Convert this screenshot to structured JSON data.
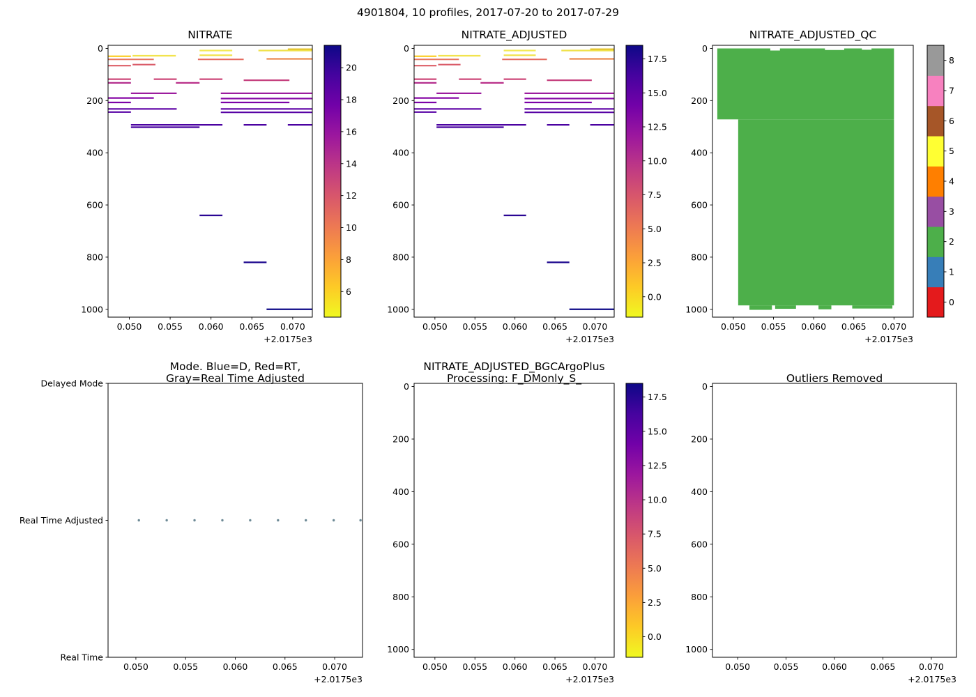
{
  "figure": {
    "title": "4901804, 10 profiles, 2017-07-20 to 2017-07-29",
    "background": "#ffffff",
    "plasma_stops_low_to_high": [
      "#f0f921",
      "#fdca26",
      "#fb9f3a",
      "#ed7953",
      "#d8576b",
      "#bd3786",
      "#9c179e",
      "#7201a8",
      "#46039f",
      "#0d0887"
    ]
  },
  "chart_data": [
    {
      "id": "nitrate",
      "type": "line",
      "title": "NITRATE",
      "x_range": [
        0.0474,
        0.0724
      ],
      "x_ticks": [
        0.05,
        0.055,
        0.06,
        0.065,
        0.07
      ],
      "x_tick_labels": [
        "0.050",
        "0.055",
        "0.060",
        "0.065",
        "0.070"
      ],
      "offset_label": "+2.0175e3",
      "y_range": [
        -12,
        1030
      ],
      "y_ticks": [
        0,
        200,
        400,
        600,
        800,
        1000
      ],
      "y_tick_labels": [
        "0",
        "200",
        "400",
        "600",
        "800",
        "1000"
      ],
      "segments": [
        {
          "x1": 0.0474,
          "x2": 0.0502,
          "d": 30,
          "c": "#fcce25"
        },
        {
          "x1": 0.0504,
          "x2": 0.0557,
          "d": 28,
          "c": "#f2e34e"
        },
        {
          "x1": 0.0586,
          "x2": 0.0626,
          "d": 26,
          "c": "#f2e34e"
        },
        {
          "x1": 0.0586,
          "x2": 0.0626,
          "d": 8,
          "c": "#f4ea54"
        },
        {
          "x1": 0.0658,
          "x2": 0.0724,
          "d": 8,
          "c": "#f0e14a"
        },
        {
          "x1": 0.0694,
          "x2": 0.0724,
          "d": 3,
          "c": "#e3c32e"
        },
        {
          "x1": 0.0474,
          "x2": 0.053,
          "d": 42,
          "c": "#e8775f"
        },
        {
          "x1": 0.0584,
          "x2": 0.064,
          "d": 42,
          "c": "#e4695e"
        },
        {
          "x1": 0.0668,
          "x2": 0.0724,
          "d": 40,
          "c": "#ec8a51"
        },
        {
          "x1": 0.0474,
          "x2": 0.0502,
          "d": 66,
          "c": "#dd5e66"
        },
        {
          "x1": 0.0504,
          "x2": 0.0532,
          "d": 62,
          "c": "#da5a68"
        },
        {
          "x1": 0.0474,
          "x2": 0.0502,
          "d": 118,
          "c": "#cc4778"
        },
        {
          "x1": 0.053,
          "x2": 0.0558,
          "d": 118,
          "c": "#cc4778"
        },
        {
          "x1": 0.0586,
          "x2": 0.0614,
          "d": 118,
          "c": "#cc4778"
        },
        {
          "x1": 0.064,
          "x2": 0.0696,
          "d": 122,
          "c": "#c5407e"
        },
        {
          "x1": 0.0474,
          "x2": 0.0502,
          "d": 132,
          "c": "#b42e8d"
        },
        {
          "x1": 0.0557,
          "x2": 0.0586,
          "d": 132,
          "c": "#b92f89"
        },
        {
          "x1": 0.0502,
          "x2": 0.0558,
          "d": 172,
          "c": "#9c1c9e"
        },
        {
          "x1": 0.0612,
          "x2": 0.0724,
          "d": 172,
          "c": "#9c1c9e"
        },
        {
          "x1": 0.0474,
          "x2": 0.053,
          "d": 190,
          "c": "#8606a6"
        },
        {
          "x1": 0.0612,
          "x2": 0.0724,
          "d": 192,
          "c": "#8606a6"
        },
        {
          "x1": 0.0474,
          "x2": 0.0502,
          "d": 207,
          "c": "#7c02a8"
        },
        {
          "x1": 0.0612,
          "x2": 0.0696,
          "d": 207,
          "c": "#7c02a8"
        },
        {
          "x1": 0.0474,
          "x2": 0.0558,
          "d": 232,
          "c": "#5f01a6"
        },
        {
          "x1": 0.0612,
          "x2": 0.0724,
          "d": 232,
          "c": "#5f01a6"
        },
        {
          "x1": 0.0474,
          "x2": 0.0502,
          "d": 244,
          "c": "#5601a4"
        },
        {
          "x1": 0.0612,
          "x2": 0.0724,
          "d": 245,
          "c": "#5601a4"
        },
        {
          "x1": 0.0502,
          "x2": 0.0614,
          "d": 293,
          "c": "#4b02a1"
        },
        {
          "x1": 0.064,
          "x2": 0.0668,
          "d": 293,
          "c": "#4b02a1"
        },
        {
          "x1": 0.0694,
          "x2": 0.0724,
          "d": 293,
          "c": "#4b02a1"
        },
        {
          "x1": 0.0502,
          "x2": 0.0586,
          "d": 302,
          "c": "#46029f"
        },
        {
          "x1": 0.0586,
          "x2": 0.0614,
          "d": 640,
          "c": "#2a0593"
        },
        {
          "x1": 0.064,
          "x2": 0.0668,
          "d": 820,
          "c": "#1b068d"
        },
        {
          "x1": 0.0668,
          "x2": 0.0724,
          "d": 1000,
          "c": "#0d0887"
        }
      ],
      "colorbar": {
        "vmin": 4.4,
        "vmax": 21.4,
        "tick_values": [
          6,
          8,
          10,
          12,
          14,
          16,
          18,
          20
        ],
        "tick_labels": [
          "6",
          "8",
          "10",
          "12",
          "14",
          "16",
          "18",
          "20"
        ],
        "stops": [
          "#f0f921",
          "#fdca26",
          "#fb9f3a",
          "#ed7953",
          "#d8576b",
          "#bd3786",
          "#9c179e",
          "#7201a8",
          "#46039f",
          "#0d0887"
        ]
      }
    },
    {
      "id": "nitrate_adjusted",
      "type": "line",
      "title": "NITRATE_ADJUSTED",
      "x_range": [
        0.0474,
        0.0724
      ],
      "x_ticks": [
        0.05,
        0.055,
        0.06,
        0.065,
        0.07
      ],
      "x_tick_labels": [
        "0.050",
        "0.055",
        "0.060",
        "0.065",
        "0.070"
      ],
      "offset_label": "+2.0175e3",
      "y_range": [
        -12,
        1030
      ],
      "y_ticks": [
        0,
        200,
        400,
        600,
        800,
        1000
      ],
      "y_tick_labels": [
        "0",
        "200",
        "400",
        "600",
        "800",
        "1000"
      ],
      "segments": [
        {
          "x1": 0.0474,
          "x2": 0.0502,
          "d": 30,
          "c": "#fcce25"
        },
        {
          "x1": 0.0504,
          "x2": 0.0557,
          "d": 28,
          "c": "#f2e34e"
        },
        {
          "x1": 0.0586,
          "x2": 0.0626,
          "d": 26,
          "c": "#f2e34e"
        },
        {
          "x1": 0.0586,
          "x2": 0.0626,
          "d": 8,
          "c": "#f4ea54"
        },
        {
          "x1": 0.0658,
          "x2": 0.0724,
          "d": 8,
          "c": "#f0e14a"
        },
        {
          "x1": 0.0694,
          "x2": 0.0724,
          "d": 3,
          "c": "#e3c32e"
        },
        {
          "x1": 0.0474,
          "x2": 0.053,
          "d": 42,
          "c": "#e8775f"
        },
        {
          "x1": 0.0584,
          "x2": 0.064,
          "d": 42,
          "c": "#e4695e"
        },
        {
          "x1": 0.0668,
          "x2": 0.0724,
          "d": 40,
          "c": "#ec8a51"
        },
        {
          "x1": 0.0474,
          "x2": 0.0502,
          "d": 66,
          "c": "#dd5e66"
        },
        {
          "x1": 0.0504,
          "x2": 0.0532,
          "d": 62,
          "c": "#da5a68"
        },
        {
          "x1": 0.0474,
          "x2": 0.0502,
          "d": 118,
          "c": "#cc4778"
        },
        {
          "x1": 0.053,
          "x2": 0.0558,
          "d": 118,
          "c": "#cc4778"
        },
        {
          "x1": 0.0586,
          "x2": 0.0614,
          "d": 118,
          "c": "#cc4778"
        },
        {
          "x1": 0.064,
          "x2": 0.0696,
          "d": 122,
          "c": "#c5407e"
        },
        {
          "x1": 0.0474,
          "x2": 0.0502,
          "d": 132,
          "c": "#b42e8d"
        },
        {
          "x1": 0.0557,
          "x2": 0.0586,
          "d": 132,
          "c": "#b92f89"
        },
        {
          "x1": 0.0502,
          "x2": 0.0558,
          "d": 172,
          "c": "#9c1c9e"
        },
        {
          "x1": 0.0612,
          "x2": 0.0724,
          "d": 172,
          "c": "#9c1c9e"
        },
        {
          "x1": 0.0474,
          "x2": 0.053,
          "d": 190,
          "c": "#8606a6"
        },
        {
          "x1": 0.0612,
          "x2": 0.0724,
          "d": 192,
          "c": "#8606a6"
        },
        {
          "x1": 0.0474,
          "x2": 0.0502,
          "d": 207,
          "c": "#7c02a8"
        },
        {
          "x1": 0.0612,
          "x2": 0.0696,
          "d": 207,
          "c": "#7c02a8"
        },
        {
          "x1": 0.0474,
          "x2": 0.0558,
          "d": 232,
          "c": "#5f01a6"
        },
        {
          "x1": 0.0612,
          "x2": 0.0724,
          "d": 232,
          "c": "#5f01a6"
        },
        {
          "x1": 0.0474,
          "x2": 0.0502,
          "d": 244,
          "c": "#5601a4"
        },
        {
          "x1": 0.0612,
          "x2": 0.0724,
          "d": 245,
          "c": "#5601a4"
        },
        {
          "x1": 0.0502,
          "x2": 0.0614,
          "d": 293,
          "c": "#4b02a1"
        },
        {
          "x1": 0.064,
          "x2": 0.0668,
          "d": 293,
          "c": "#4b02a1"
        },
        {
          "x1": 0.0694,
          "x2": 0.0724,
          "d": 293,
          "c": "#4b02a1"
        },
        {
          "x1": 0.0502,
          "x2": 0.0586,
          "d": 302,
          "c": "#46029f"
        },
        {
          "x1": 0.0586,
          "x2": 0.0614,
          "d": 640,
          "c": "#2a0593"
        },
        {
          "x1": 0.064,
          "x2": 0.0668,
          "d": 820,
          "c": "#1b068d"
        },
        {
          "x1": 0.0668,
          "x2": 0.0724,
          "d": 1000,
          "c": "#0d0887"
        }
      ],
      "colorbar": {
        "vmin": -1.5,
        "vmax": 18.5,
        "tick_values": [
          0,
          2.5,
          5,
          7.5,
          10,
          12.5,
          15,
          17.5
        ],
        "tick_labels": [
          "0.0",
          "2.5",
          "5.0",
          "7.5",
          "10.0",
          "12.5",
          "15.0",
          "17.5"
        ],
        "stops": [
          "#f0f921",
          "#fdca26",
          "#fb9f3a",
          "#ed7953",
          "#d8576b",
          "#bd3786",
          "#9c179e",
          "#7201a8",
          "#46039f",
          "#0d0887"
        ]
      }
    },
    {
      "id": "nitrate_adjusted_qc",
      "type": "heatmap",
      "title": "NITRATE_ADJUSTED_QC",
      "x_range": [
        0.0474,
        0.0724
      ],
      "x_ticks": [
        0.05,
        0.055,
        0.06,
        0.065,
        0.07
      ],
      "x_tick_labels": [
        "0.050",
        "0.055",
        "0.060",
        "0.065",
        "0.070"
      ],
      "offset_label": "+2.0175e3",
      "y_range": [
        -12,
        1030
      ],
      "y_ticks": [
        0,
        200,
        400,
        600,
        800,
        1000
      ],
      "y_tick_labels": [
        "0",
        "200",
        "400",
        "600",
        "800",
        "1000"
      ],
      "qc_fill_value": 2,
      "qc_fill_color": "#4daf4a",
      "rects": [
        {
          "x1": 0.048,
          "x2": 0.07,
          "y1": 0,
          "y2": 272,
          "c": "#4daf4a"
        },
        {
          "x1": 0.0506,
          "x2": 0.07,
          "y1": 272,
          "y2": 985,
          "c": "#4daf4a"
        },
        {
          "x1": 0.052,
          "x2": 0.0548,
          "y1": 985,
          "y2": 1002,
          "c": "#4daf4a"
        },
        {
          "x1": 0.0552,
          "x2": 0.0578,
          "y1": 985,
          "y2": 998,
          "c": "#4daf4a"
        },
        {
          "x1": 0.0606,
          "x2": 0.0622,
          "y1": 985,
          "y2": 1000,
          "c": "#4daf4a"
        },
        {
          "x1": 0.0648,
          "x2": 0.0698,
          "y1": 985,
          "y2": 997,
          "c": "#4daf4a"
        },
        {
          "x1": 0.0546,
          "x2": 0.0558,
          "y1": 0,
          "y2": 8,
          "c": "#ffffff"
        },
        {
          "x1": 0.0614,
          "x2": 0.0638,
          "y1": 0,
          "y2": 6,
          "c": "#ffffff"
        },
        {
          "x1": 0.066,
          "x2": 0.0672,
          "y1": 0,
          "y2": 5,
          "c": "#ffffff"
        }
      ],
      "colorbar": {
        "colors": [
          "#e41a1c",
          "#377eb8",
          "#4daf4a",
          "#984ea3",
          "#ff7f00",
          "#ffff33",
          "#a65628",
          "#f781bf",
          "#999999"
        ],
        "tick_values": [
          0,
          1,
          2,
          3,
          4,
          5,
          6,
          7,
          8
        ],
        "tick_labels": [
          "0",
          "1",
          "2",
          "3",
          "4",
          "5",
          "6",
          "7",
          "8"
        ]
      }
    },
    {
      "id": "mode",
      "type": "scatter",
      "title": "Mode. Blue=D, Red=RT,\nGray=Real Time Adjusted",
      "x_range": [
        0.0472,
        0.0728
      ],
      "x_ticks": [
        0.05,
        0.055,
        0.06,
        0.065,
        0.07
      ],
      "x_tick_labels": [
        "0.050",
        "0.055",
        "0.060",
        "0.065",
        "0.070"
      ],
      "offset_label": "+2.0175e3",
      "y_range": [
        2,
        0
      ],
      "y_ticks": [
        2,
        1,
        0
      ],
      "y_tick_labels": [
        "Delayed Mode",
        "Real Time Adjusted",
        "Real Time"
      ],
      "point_color": "#6d8a96",
      "points": [
        {
          "x": 0.0503,
          "y": 1
        },
        {
          "x": 0.0531,
          "y": 1
        },
        {
          "x": 0.0559,
          "y": 1
        },
        {
          "x": 0.0587,
          "y": 1
        },
        {
          "x": 0.0615,
          "y": 1
        },
        {
          "x": 0.0643,
          "y": 1
        },
        {
          "x": 0.0671,
          "y": 1
        },
        {
          "x": 0.0699,
          "y": 1
        },
        {
          "x": 0.0726,
          "y": 1
        }
      ]
    },
    {
      "id": "nitrate_adjusted_bgc",
      "type": "line",
      "title": "NITRATE_ADJUSTED_BGCArgoPlus\nProcessing: F_DMonly_S_",
      "x_range": [
        0.0474,
        0.0724
      ],
      "x_ticks": [
        0.05,
        0.055,
        0.06,
        0.065,
        0.07
      ],
      "x_tick_labels": [
        "0.050",
        "0.055",
        "0.060",
        "0.065",
        "0.070"
      ],
      "offset_label": "+2.0175e3",
      "y_range": [
        -12,
        1030
      ],
      "y_ticks": [
        0,
        200,
        400,
        600,
        800,
        1000
      ],
      "y_tick_labels": [
        "0",
        "200",
        "400",
        "600",
        "800",
        "1000"
      ],
      "segments": [],
      "colorbar": {
        "vmin": -1.5,
        "vmax": 18.5,
        "tick_values": [
          0,
          2.5,
          5,
          7.5,
          10,
          12.5,
          15,
          17.5
        ],
        "tick_labels": [
          "0.0",
          "2.5",
          "5.0",
          "7.5",
          "10.0",
          "12.5",
          "15.0",
          "17.5"
        ],
        "stops": [
          "#f0f921",
          "#fdca26",
          "#fb9f3a",
          "#ed7953",
          "#d8576b",
          "#bd3786",
          "#9c179e",
          "#7201a8",
          "#46039f",
          "#0d0887"
        ]
      }
    },
    {
      "id": "outliers",
      "type": "line",
      "title": "Outliers Removed",
      "x_range": [
        0.0474,
        0.0726
      ],
      "x_ticks": [
        0.05,
        0.055,
        0.06,
        0.065,
        0.07
      ],
      "x_tick_labels": [
        "0.050",
        "0.055",
        "0.060",
        "0.065",
        "0.070"
      ],
      "offset_label": "+2.0175e3",
      "y_range": [
        -12,
        1030
      ],
      "y_ticks": [
        0,
        200,
        400,
        600,
        800,
        1000
      ],
      "y_tick_labels": [
        "0",
        "200",
        "400",
        "600",
        "800",
        "1000"
      ],
      "segments": []
    }
  ]
}
